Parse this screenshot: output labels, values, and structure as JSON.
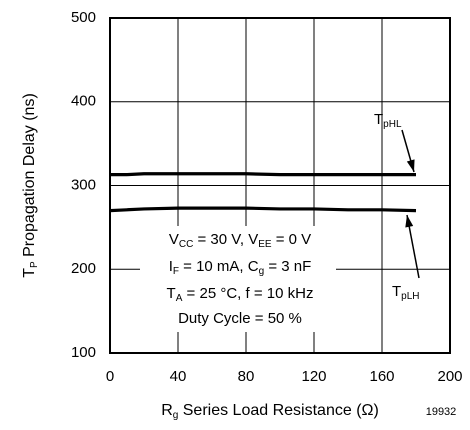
{
  "chart_data": {
    "type": "line",
    "y_label": [
      "T",
      "P",
      " Propagation Delay (ns)"
    ],
    "x_label": [
      "R",
      "g",
      " Series Load Resistance (Ω)"
    ],
    "figure_number": "19932",
    "x": [
      0,
      10,
      20,
      40,
      60,
      80,
      100,
      120,
      140,
      160,
      180
    ],
    "series": [
      {
        "label": [
          "T",
          "pHL"
        ],
        "color": "#000000",
        "values": [
          313,
          313,
          314,
          314,
          314,
          314,
          313,
          313,
          313,
          313,
          313
        ]
      },
      {
        "label": [
          "T",
          "pLH"
        ],
        "color": "#000000",
        "values": [
          270,
          271,
          272,
          273,
          273,
          273,
          272,
          272,
          271,
          271,
          270
        ]
      }
    ],
    "annotation": [
      [
        "V",
        "CC",
        " = 30 V,  V",
        "EE",
        " = 0 V"
      ],
      [
        "I",
        "F",
        " = 10 mA,  C",
        "g",
        " = 3 nF"
      ],
      [
        "T",
        "A",
        " = 25 °C,  f = 10 kHz"
      ],
      [
        "Duty Cycle = 50 %"
      ]
    ],
    "xlim": [
      0,
      200
    ],
    "xticks": [
      0,
      40,
      80,
      120,
      160,
      200
    ],
    "ylim": [
      100,
      500
    ],
    "yticks": [
      100,
      200,
      300,
      400,
      500
    ],
    "grid": true
  }
}
